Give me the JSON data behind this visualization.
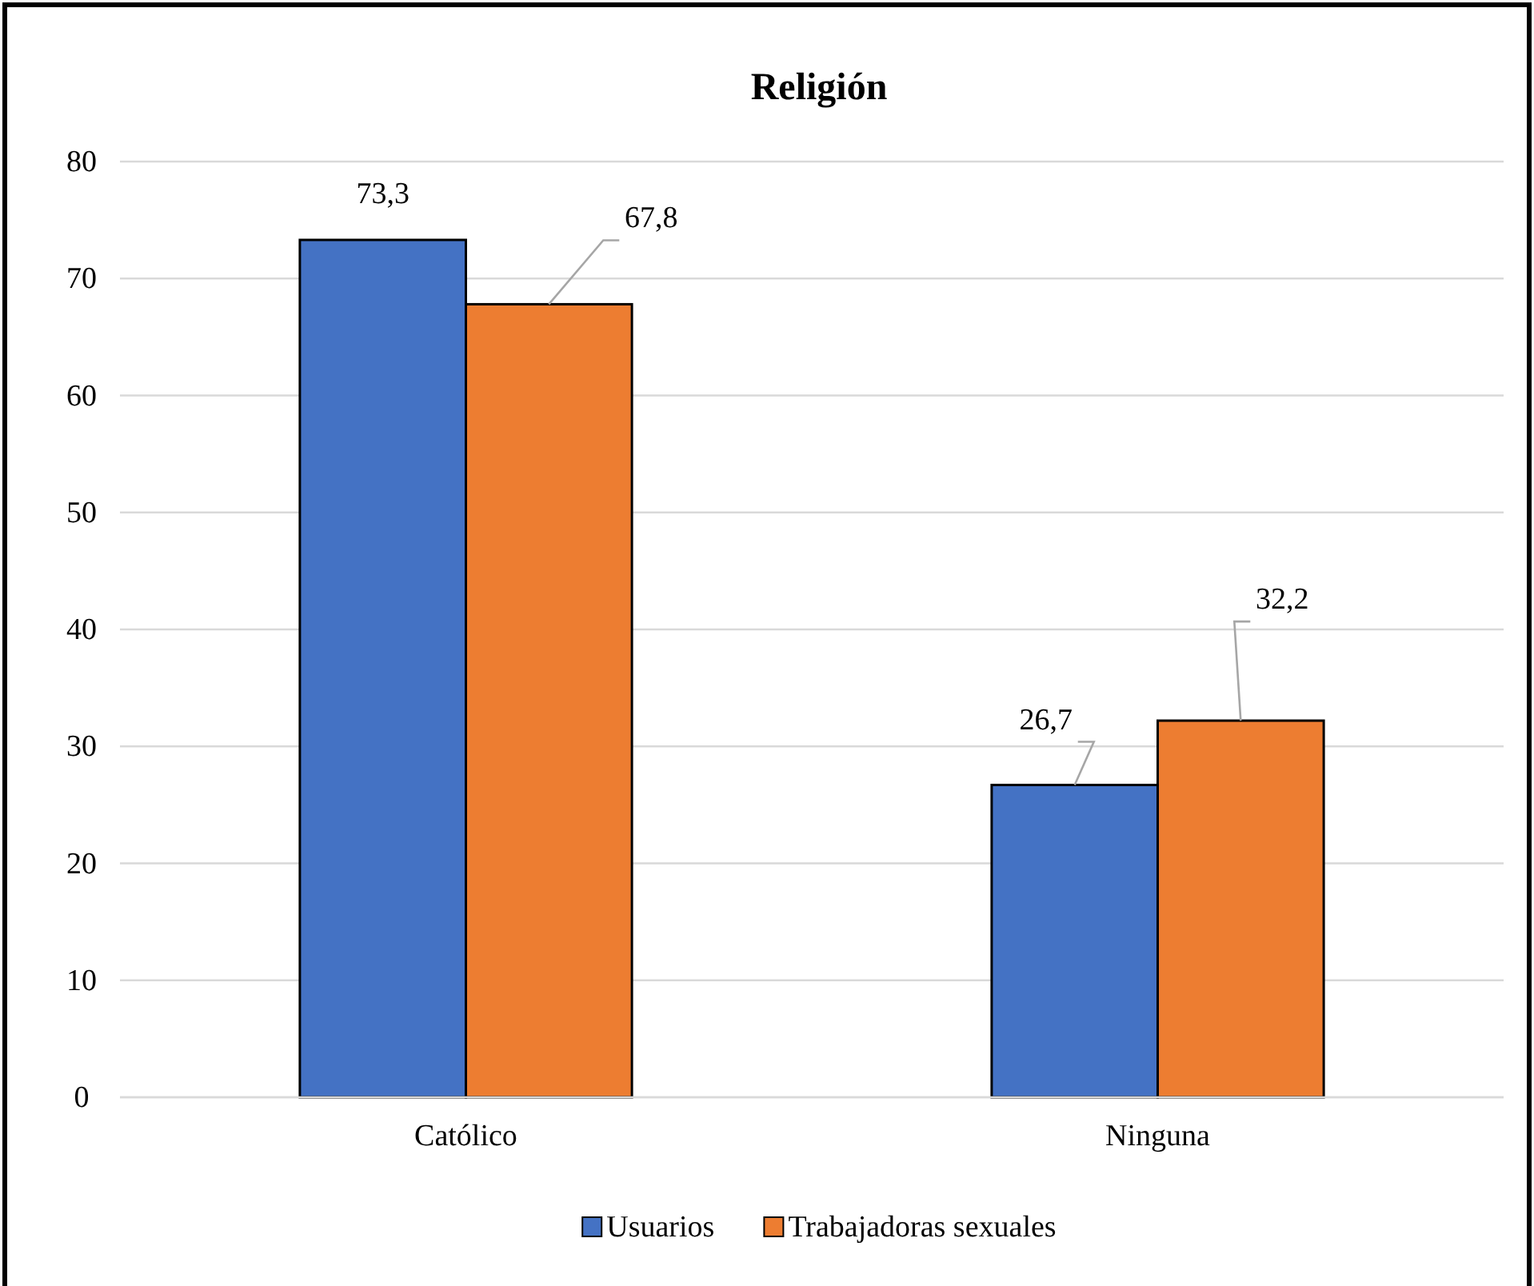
{
  "chart_data": {
    "type": "bar",
    "title": "Religión",
    "categories": [
      "Católico",
      "Ninguna"
    ],
    "series": [
      {
        "name": "Usuarios",
        "color": "#4472c4",
        "values": [
          73.3,
          26.7
        ],
        "value_labels": [
          "73,3",
          "26,7"
        ]
      },
      {
        "name": "Trabajadoras sexuales",
        "color": "#ed7d31",
        "values": [
          67.8,
          32.2
        ],
        "value_labels": [
          "67,8",
          "32,2"
        ]
      }
    ],
    "ylim": [
      0,
      80
    ],
    "yticks": [
      0,
      10,
      20,
      30,
      40,
      50,
      60,
      70,
      80
    ],
    "grid": "y",
    "legend": "bottom"
  }
}
